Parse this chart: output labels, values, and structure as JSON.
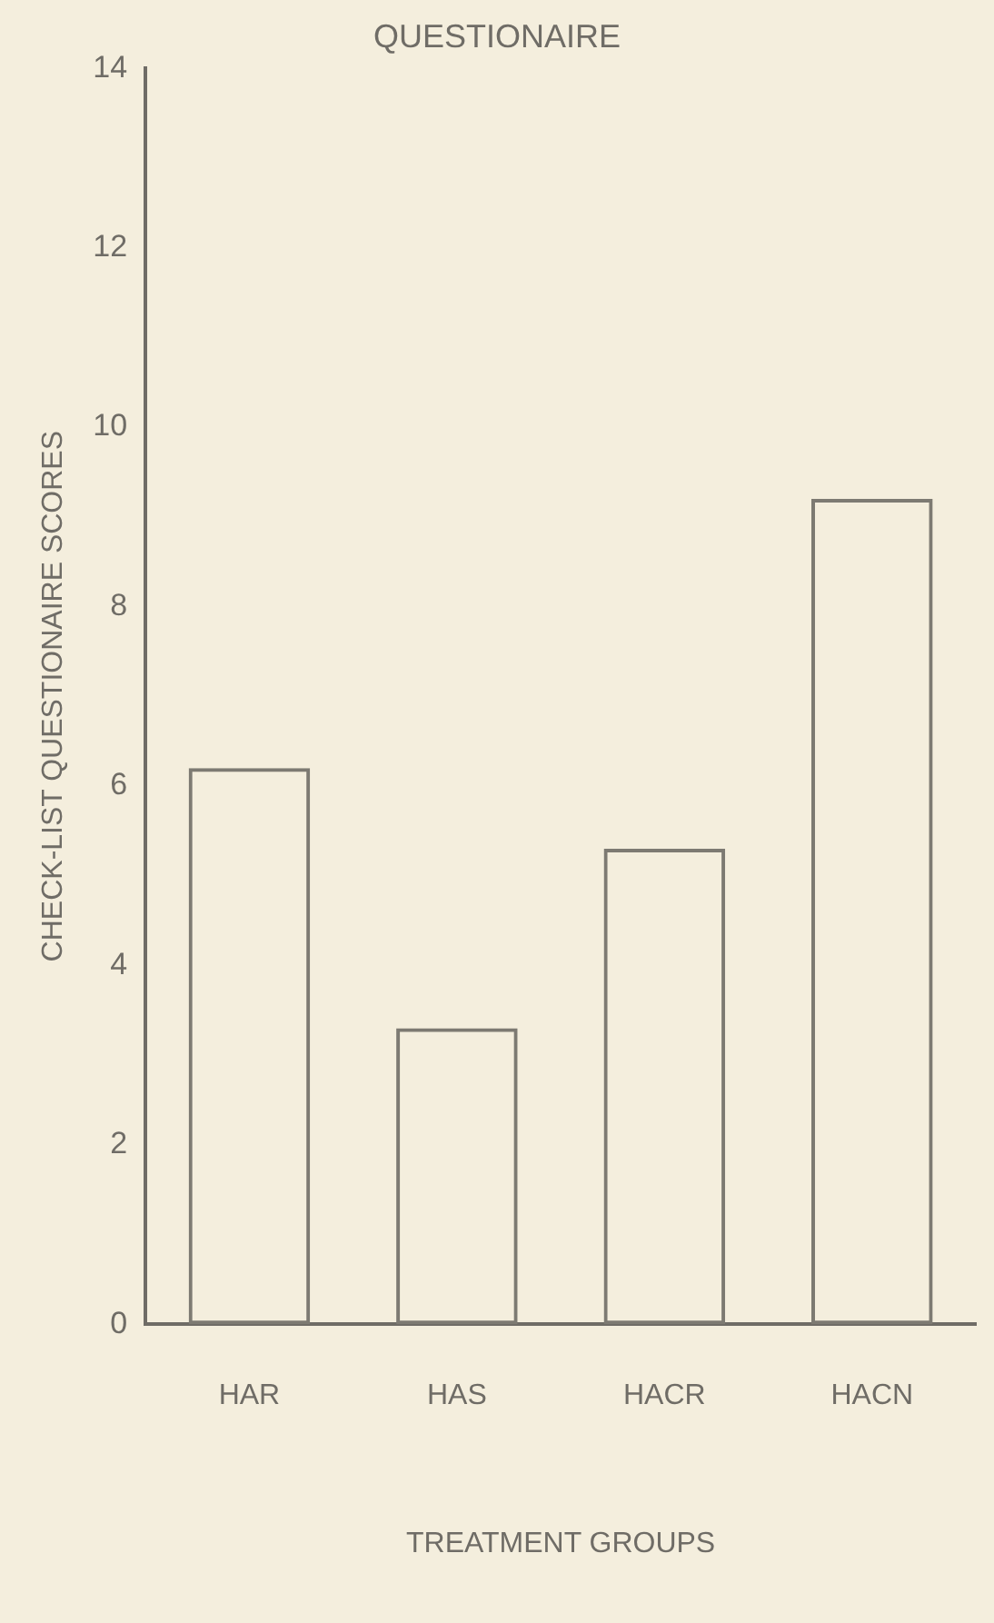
{
  "chart_data": {
    "type": "bar",
    "title": "QUESTIONAIRE",
    "xlabel": "TREATMENT GROUPS",
    "ylabel": "CHECK-LIST QUESTIONAIRE SCORES",
    "categories": [
      "HAR",
      "HAS",
      "HACR",
      "HACN"
    ],
    "values": [
      6.2,
      3.3,
      5.3,
      9.2
    ],
    "color": "#7d7a72",
    "ylim": [
      0,
      14
    ],
    "yticks": [
      0,
      2,
      4,
      6,
      8,
      10,
      12,
      14
    ],
    "grid": false,
    "legend": false
  }
}
